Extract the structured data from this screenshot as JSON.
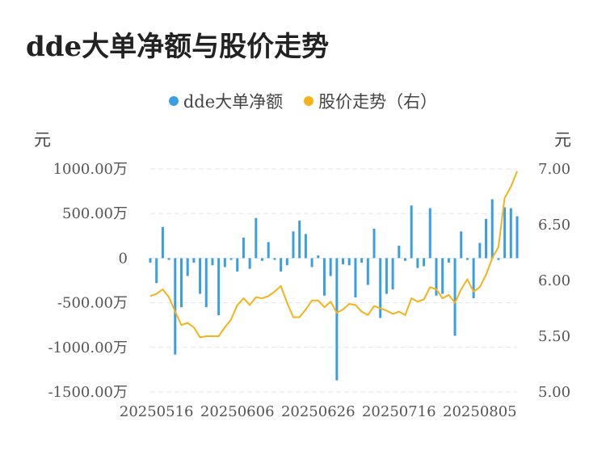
{
  "chart_data": {
    "type": "bar",
    "title": "dde大单净额与股价走势",
    "left_unit": "元",
    "right_unit": "元",
    "legend": [
      {
        "name": "dde大单净额",
        "color": "#3a9ee4"
      },
      {
        "name": "股价走势（右）",
        "color": "#f5b219"
      }
    ],
    "y_left": {
      "min": -1500,
      "max": 1000,
      "ticks": [
        1000,
        500,
        0,
        -500,
        -1000,
        -1500
      ],
      "tick_labels": [
        "1000.00万",
        "500.00万",
        "0",
        "-500.00万",
        "-1000.00万",
        "-1500.00万"
      ]
    },
    "y_right": {
      "min": 5.0,
      "max": 7.0,
      "ticks": [
        7.0,
        6.5,
        6.0,
        5.5,
        5.0
      ],
      "tick_labels": [
        "7.00",
        "6.50",
        "6.00",
        "5.50",
        "5.00"
      ]
    },
    "x_tick_labels": [
      "20250516",
      "20250606",
      "20250626",
      "20250716",
      "20250805"
    ],
    "x_tick_index": [
      1,
      14,
      27,
      40,
      53
    ],
    "series": [
      {
        "name": "dde大单净额",
        "type": "bar",
        "values": [
          -50,
          -280,
          350,
          -20,
          -1080,
          -550,
          -200,
          -50,
          -400,
          -550,
          -80,
          -640,
          -100,
          -20,
          -150,
          230,
          -120,
          450,
          -30,
          180,
          -20,
          -150,
          -80,
          300,
          420,
          270,
          -100,
          30,
          -420,
          -200,
          -1370,
          -70,
          -80,
          -440,
          -50,
          -300,
          330,
          -670,
          -400,
          -350,
          140,
          -30,
          590,
          -110,
          -90,
          560,
          -420,
          -400,
          -50,
          -870,
          300,
          -20,
          -450,
          170,
          440,
          660,
          -20,
          570,
          560,
          470
        ]
      },
      {
        "name": "股价走势（右）",
        "type": "line",
        "values": [
          5.86,
          5.88,
          5.92,
          5.85,
          5.72,
          5.6,
          5.62,
          5.58,
          5.49,
          5.5,
          5.5,
          5.5,
          5.58,
          5.65,
          5.78,
          5.84,
          5.78,
          5.85,
          5.84,
          5.86,
          5.9,
          5.95,
          5.8,
          5.67,
          5.67,
          5.74,
          5.82,
          5.82,
          5.76,
          5.81,
          5.71,
          5.74,
          5.79,
          5.78,
          5.72,
          5.69,
          5.77,
          5.75,
          5.73,
          5.7,
          5.72,
          5.69,
          5.84,
          5.81,
          5.83,
          5.94,
          5.92,
          5.84,
          5.87,
          5.8,
          5.92,
          6.01,
          5.9,
          5.94,
          6.05,
          6.2,
          6.3,
          6.74,
          6.84,
          6.98
        ]
      }
    ]
  }
}
